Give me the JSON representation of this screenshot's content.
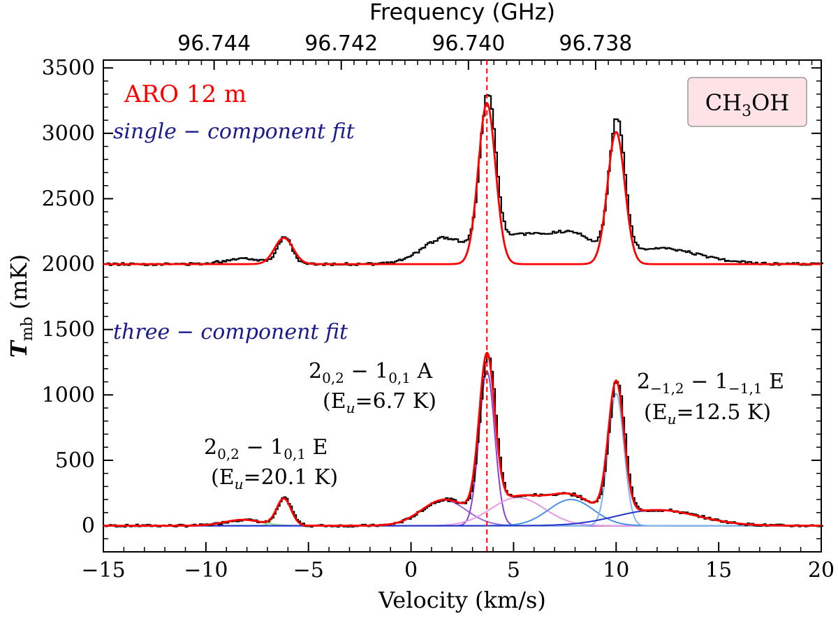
{
  "chart_data": {
    "type": "line",
    "title": "",
    "telescope_label": "ARO 12 m",
    "species_label": {
      "base": "CH",
      "sub": "3",
      "rest": "OH"
    },
    "xlabel": "Velocity (km/s)",
    "ylabel": {
      "main": "T",
      "sub": "mb",
      "units": " (mK)"
    },
    "top_axis_title": "Frequency (GHz)",
    "xlim": [
      -15,
      20
    ],
    "ylim": [
      -200,
      3560
    ],
    "x_ticks": [
      -15,
      -10,
      -5,
      0,
      5,
      10,
      15,
      20
    ],
    "x_tick_labels": [
      "−15",
      "−10",
      "−5",
      "0",
      "5",
      "10",
      "15",
      "20"
    ],
    "y_ticks": [
      0,
      500,
      1000,
      1500,
      2000,
      2500,
      3000,
      3500
    ],
    "y_tick_labels": [
      "0",
      "500",
      "1000",
      "1500",
      "2000",
      "2500",
      "3000",
      "3500"
    ],
    "top_ticks": [
      {
        "label": "96.744",
        "velocity": -9.6
      },
      {
        "label": "96.742",
        "velocity": -3.4
      },
      {
        "label": "96.740",
        "velocity": 2.8
      },
      {
        "label": "96.738",
        "velocity": 9.0
      }
    ],
    "reference_velocity": 3.7,
    "upper_offset": 2000,
    "fit_labels": {
      "upper": "single − component fit",
      "lower": "three − component fit"
    },
    "transitions": [
      {
        "name": "2_{0,2} − 1_{0,1} E",
        "q": "2",
        "qs": "0,2",
        "m": " − 1",
        "ms": "0,1",
        "tail": " E",
        "energy": "(E",
        "energy_sub": "u",
        "energy_val": "=20.1 K)"
      },
      {
        "name": "2_{0,2} − 1_{0,1} A",
        "q": "2",
        "qs": "0,2",
        "m": " − 1",
        "ms": "0,1",
        "tail": " A",
        "energy": "(E",
        "energy_sub": "u",
        "energy_val": "=6.7 K)"
      },
      {
        "name": "2_{−1,2} − 1_{−1,1} E",
        "q": "2",
        "qs": "−1,2",
        "m": " − 1",
        "ms": "−1,1",
        "tail": " E",
        "energy": "(E",
        "energy_sub": "u",
        "energy_val": "=12.5 K)"
      }
    ],
    "series": [
      {
        "name": "observed spectrum",
        "color": "#000000",
        "style": "step"
      },
      {
        "name": "single-component fit",
        "color": "#ff0000",
        "components": [
          {
            "center": -6.2,
            "amp": 200,
            "sigma": 0.45
          },
          {
            "center": 3.7,
            "amp": 1230,
            "sigma": 0.42
          },
          {
            "center": 10.0,
            "amp": 1010,
            "sigma": 0.42
          }
        ]
      },
      {
        "name": "total three-component fit",
        "color": "#ff0000"
      },
      {
        "name": "narrow E (2_{0,2}-1_{0,1})",
        "color": "#7cd97c",
        "components": [
          {
            "center": -6.2,
            "amp": 205,
            "sigma": 0.35
          }
        ]
      },
      {
        "name": "broad E (2_{0,2}-1_{0,1})",
        "color": "#8fd98f",
        "components": [
          {
            "center": -8.2,
            "amp": 45,
            "sigma": 0.9
          }
        ]
      },
      {
        "name": "A broad blue wing",
        "color": "#9b6ad9",
        "components": [
          {
            "center": 1.6,
            "amp": 195,
            "sigma": 1.1
          }
        ]
      },
      {
        "name": "A narrow",
        "color": "#8a3fd6",
        "components": [
          {
            "center": 3.7,
            "amp": 1180,
            "sigma": 0.38
          }
        ]
      },
      {
        "name": "A broad red wing",
        "color": "#e59ae8",
        "components": [
          {
            "center": 5.2,
            "amp": 215,
            "sigma": 1.3
          }
        ]
      },
      {
        "name": "E broad blue wing",
        "color": "#4a90e8",
        "components": [
          {
            "center": 7.8,
            "amp": 200,
            "sigma": 1.1
          }
        ]
      },
      {
        "name": "E narrow",
        "color": "#7eb6ee",
        "components": [
          {
            "center": 10.0,
            "amp": 1010,
            "sigma": 0.38
          }
        ]
      },
      {
        "name": "E broad red wing",
        "color": "#2233cc",
        "components": [
          {
            "center": 12.0,
            "amp": 120,
            "sigma": 2.0
          }
        ]
      }
    ]
  }
}
